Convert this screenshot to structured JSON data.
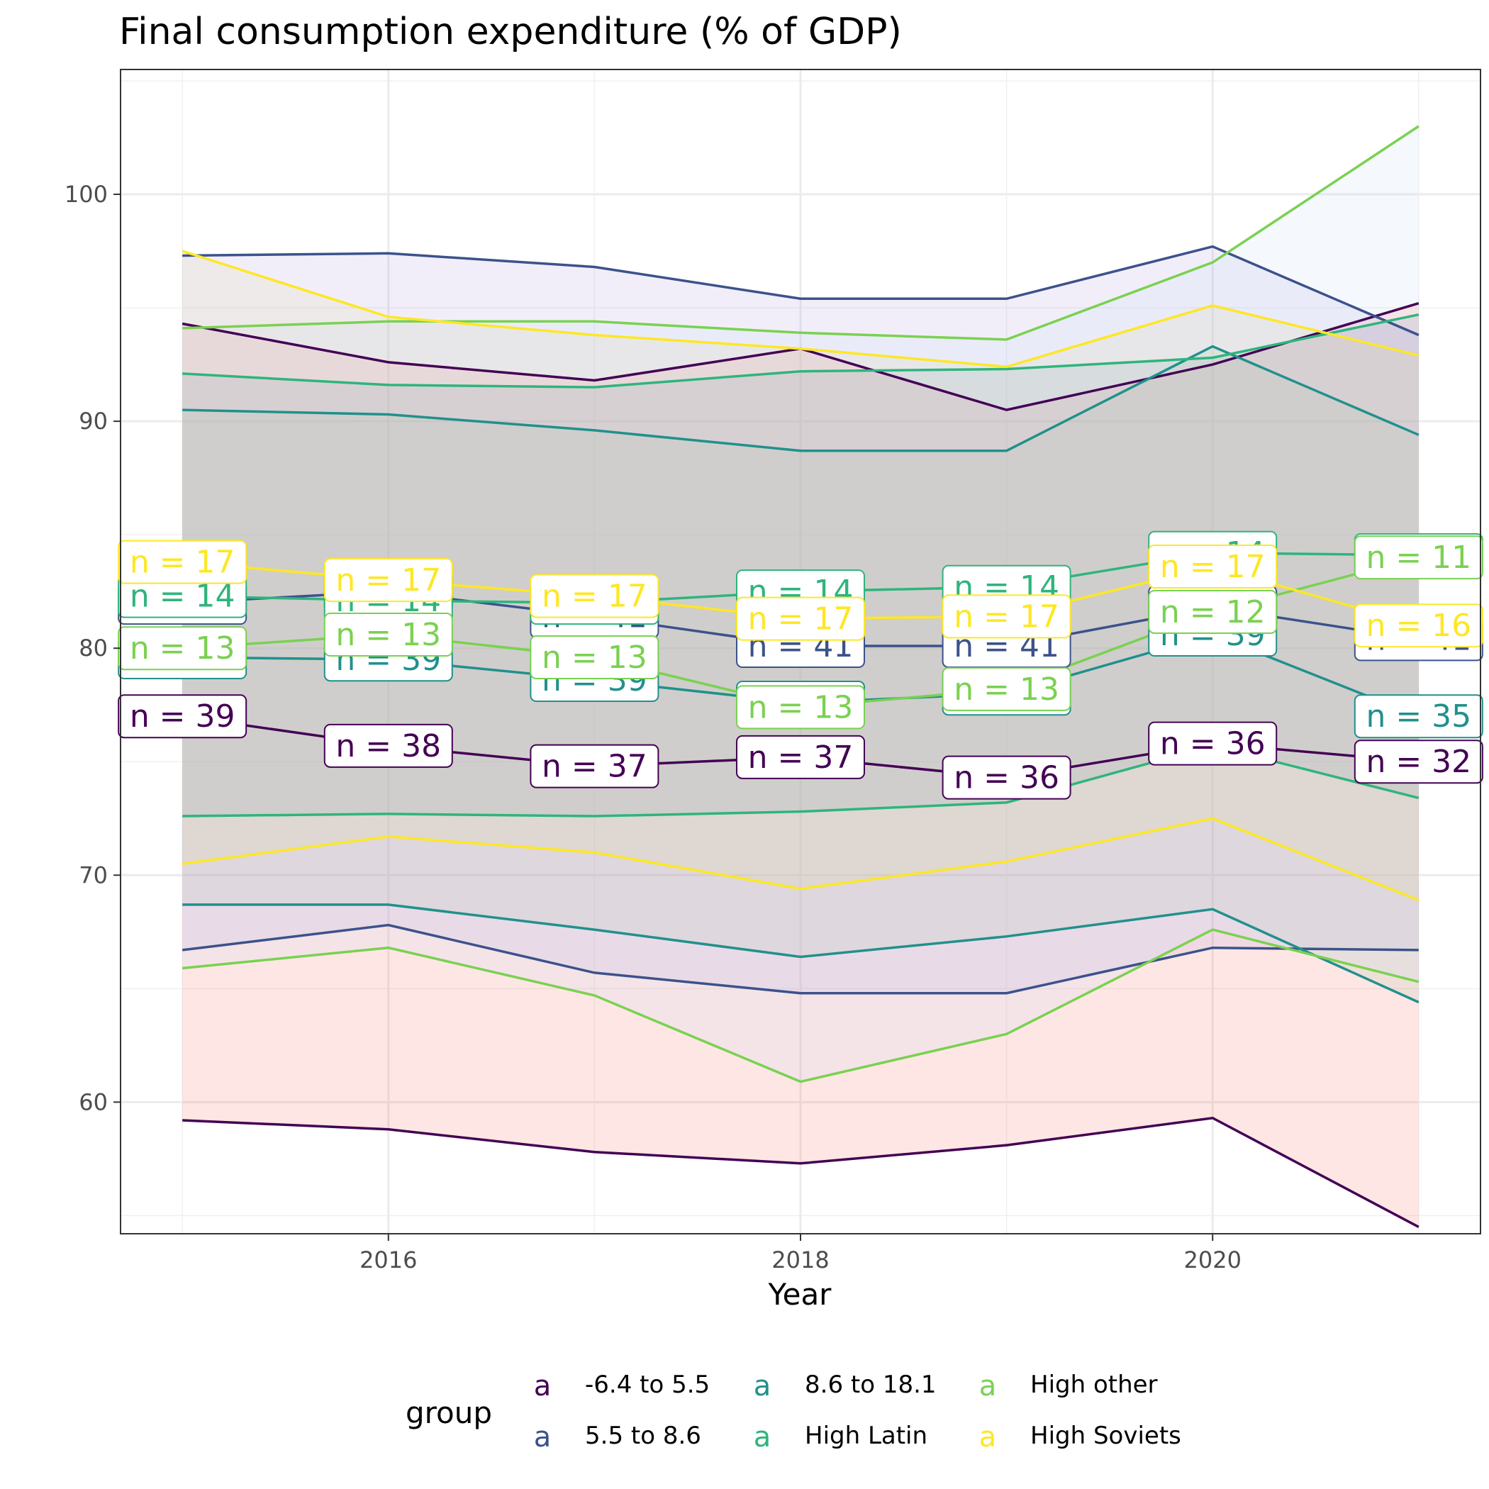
{
  "chart_data": {
    "type": "line",
    "title": "Final consumption expenditure (% of GDP)",
    "xlabel": "Year",
    "ylabel": "",
    "xlim": [
      2014.7,
      2021.3
    ],
    "ylim": [
      54.2,
      105.5
    ],
    "x_ticks": [
      2016,
      2018,
      2020
    ],
    "y_ticks": [
      60,
      70,
      80,
      90,
      100
    ],
    "grid": true,
    "legend": {
      "title": "group",
      "position": "bottom",
      "key_glyph": "a"
    },
    "series": [
      {
        "name": "-6.4 to 5.5",
        "color": "#440154",
        "fill": "#f8766d",
        "x": [
          2015,
          2016,
          2017,
          2018,
          2019,
          2020,
          2021
        ],
        "mean": [
          77.0,
          75.7,
          74.8,
          75.2,
          74.3,
          75.8,
          75.0
        ],
        "upper": [
          94.3,
          92.6,
          91.8,
          93.2,
          90.5,
          92.5,
          95.2
        ],
        "lower": [
          59.2,
          58.8,
          57.8,
          57.3,
          58.1,
          59.3,
          54.5
        ],
        "n": [
          39,
          38,
          37,
          37,
          36,
          36,
          32
        ]
      },
      {
        "name": "5.5 to 8.6",
        "color": "#3b528b",
        "fill": "#b79fe0",
        "x": [
          2015,
          2016,
          2017,
          2018,
          2019,
          2020,
          2021
        ],
        "mean": [
          82.0,
          82.5,
          81.4,
          80.1,
          80.1,
          81.8,
          80.4
        ],
        "upper": [
          97.3,
          97.4,
          96.8,
          95.4,
          95.4,
          97.7,
          93.8
        ],
        "lower": [
          66.7,
          67.8,
          65.7,
          64.8,
          64.8,
          66.8,
          66.7
        ],
        "n": [
          41,
          41,
          41,
          41,
          41,
          41,
          41
        ]
      },
      {
        "name": "8.6 to 18.1",
        "color": "#21908c",
        "fill": "#a6c9a0",
        "x": [
          2015,
          2016,
          2017,
          2018,
          2019,
          2020,
          2021
        ],
        "mean": [
          79.6,
          79.5,
          78.6,
          77.6,
          78.0,
          80.6,
          77.0
        ],
        "upper": [
          90.5,
          90.3,
          89.6,
          88.7,
          88.7,
          93.3,
          89.4
        ],
        "lower": [
          68.7,
          68.7,
          67.6,
          66.4,
          67.3,
          68.5,
          64.4
        ],
        "n": [
          39,
          39,
          39,
          39,
          39,
          39,
          35
        ]
      },
      {
        "name": "High Latin",
        "color": "#2fb47c",
        "fill": "#6a8fae",
        "x": [
          2015,
          2016,
          2017,
          2018,
          2019,
          2020,
          2021
        ],
        "mean": [
          82.3,
          82.1,
          82.0,
          82.5,
          82.7,
          84.2,
          84.1
        ],
        "upper": [
          92.1,
          91.6,
          91.5,
          92.2,
          92.3,
          92.8,
          94.7
        ],
        "lower": [
          72.6,
          72.7,
          72.6,
          72.8,
          73.2,
          75.7,
          73.4
        ],
        "n": [
          14,
          14,
          14,
          14,
          14,
          14,
          11
        ]
      },
      {
        "name": "High other",
        "color": "#7ad151",
        "fill": "#c8dcf8",
        "x": [
          2015,
          2016,
          2017,
          2018,
          2019,
          2020,
          2021
        ],
        "mean": [
          80.0,
          80.6,
          79.6,
          77.4,
          78.2,
          81.6,
          84.0
        ],
        "upper": [
          94.1,
          94.4,
          94.4,
          93.9,
          93.6,
          97.0,
          103.0
        ],
        "lower": [
          65.9,
          66.8,
          64.7,
          60.9,
          63.0,
          67.6,
          65.3
        ],
        "n": [
          13,
          13,
          13,
          13,
          13,
          12,
          11
        ]
      },
      {
        "name": "High Soviets",
        "color": "#fde725",
        "fill": "#e0d8a0",
        "x": [
          2015,
          2016,
          2017,
          2018,
          2019,
          2020,
          2021
        ],
        "mean": [
          83.8,
          83.0,
          82.3,
          81.3,
          81.4,
          83.6,
          81.0
        ],
        "upper": [
          97.5,
          94.6,
          93.8,
          93.2,
          92.4,
          95.1,
          92.9
        ],
        "lower": [
          70.5,
          71.7,
          71.0,
          69.4,
          70.6,
          72.5,
          68.9
        ],
        "n": [
          17,
          17,
          17,
          17,
          17,
          17,
          16
        ]
      }
    ]
  }
}
